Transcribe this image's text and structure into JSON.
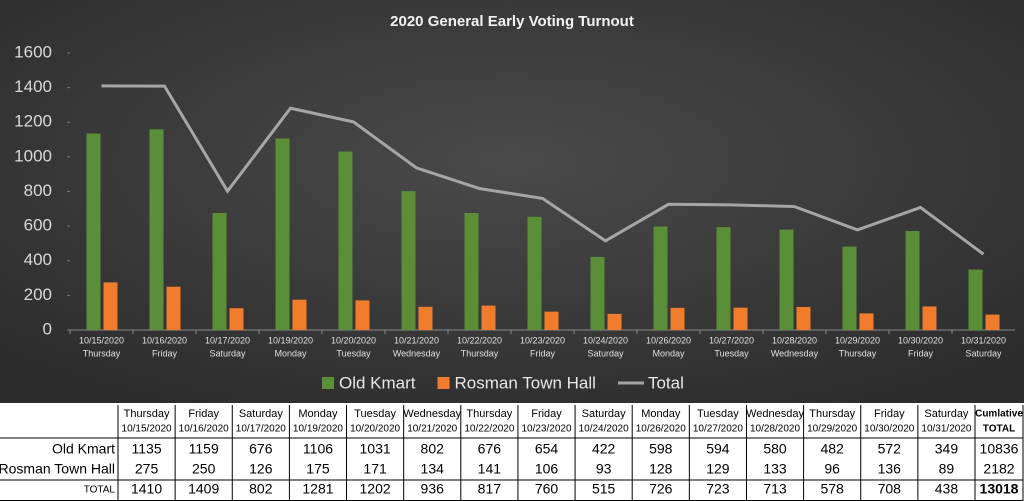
{
  "chart_data": {
    "type": "bar_line",
    "title": "2020 General Early Voting Turnout",
    "categories": [
      "10/15/2020",
      "10/16/2020",
      "10/17/2020",
      "10/19/2020",
      "10/20/2020",
      "10/21/2020",
      "10/22/2020",
      "10/23/2020",
      "10/24/2020",
      "10/26/2020",
      "10/27/2020",
      "10/28/2020",
      "10/29/2020",
      "10/30/2020",
      "10/31/2020"
    ],
    "weekdays": [
      "Thursday",
      "Friday",
      "Saturday",
      "Monday",
      "Tuesday",
      "Wednesday",
      "Thursday",
      "Friday",
      "Saturday",
      "Monday",
      "Tuesday",
      "Wednesday",
      "Thursday",
      "Friday",
      "Saturday"
    ],
    "series": [
      {
        "name": "Old Kmart",
        "type": "bar",
        "color": "#5a8f38",
        "values": [
          1135,
          1159,
          676,
          1106,
          1031,
          802,
          676,
          654,
          422,
          598,
          594,
          580,
          482,
          572,
          349
        ]
      },
      {
        "name": "Rosman Town Hall",
        "type": "bar",
        "color": "#f07c2c",
        "values": [
          275,
          250,
          126,
          175,
          171,
          134,
          141,
          106,
          93,
          128,
          129,
          133,
          96,
          136,
          89
        ]
      },
      {
        "name": "Total",
        "type": "line",
        "color": "#a6a6a6",
        "values": [
          1410,
          1409,
          802,
          1281,
          1202,
          936,
          817,
          760,
          515,
          726,
          723,
          713,
          578,
          708,
          438
        ]
      }
    ],
    "ylim": [
      0,
      1600
    ],
    "yticks": [
      0,
      200,
      400,
      600,
      800,
      1000,
      1200,
      1400,
      1600
    ],
    "legend": "bottom",
    "table": {
      "row_labels": [
        "Old Kmart",
        "Rosman Town Hall",
        "TOTAL"
      ],
      "cumulative_header": [
        "Cumlative",
        "TOTAL"
      ],
      "cumulative_totals": [
        10836,
        2182,
        13018
      ]
    }
  }
}
